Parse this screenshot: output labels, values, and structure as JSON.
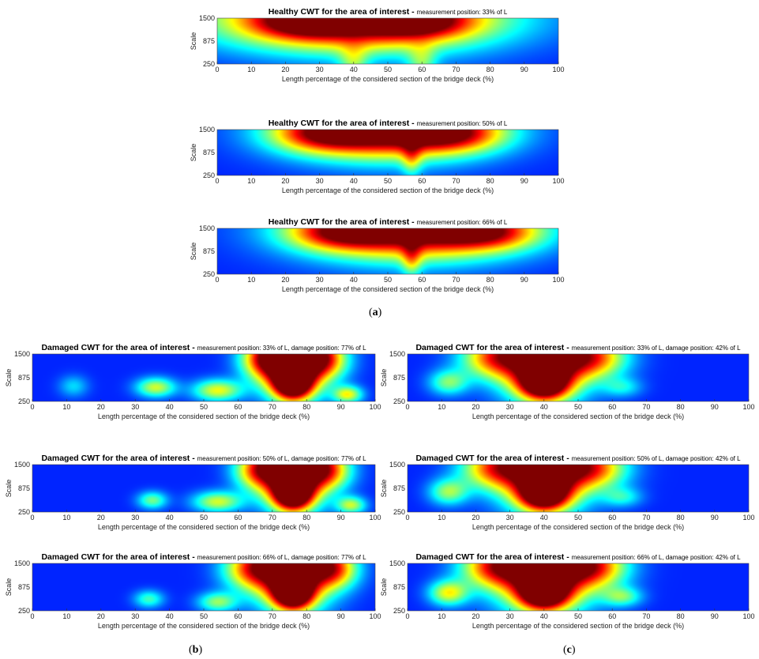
{
  "colors": {
    "colormap": "jet",
    "low": "#1a2fa6",
    "high": "#e3130b"
  },
  "group_labels": {
    "a": {
      "open": "(",
      "letter": "a",
      "close": ")"
    },
    "b": {
      "open": "(",
      "letter": "b",
      "close": ")"
    },
    "c": {
      "open": "(",
      "letter": "c",
      "close": ")"
    }
  },
  "chart_data": [
    {
      "id": "a1",
      "group": "a",
      "type": "heatmap",
      "title_bold": "Healthy CWT for the area of interest - ",
      "title_rest": "measurement position: 33% of L",
      "xlabel": "Length percentage of the considered section of the bridge deck (%)",
      "ylabel": "Scale",
      "xlim": [
        0,
        100
      ],
      "ylim": [
        250,
        1500
      ],
      "xticks": [
        "0",
        "10",
        "20",
        "30",
        "40",
        "50",
        "60",
        "70",
        "80",
        "90",
        "100"
      ],
      "yticks": [
        "250",
        "875",
        "1500"
      ],
      "features": [
        {
          "cx": 41,
          "cy": 1500,
          "w": 28,
          "h": 620,
          "v": 1.0
        },
        {
          "cx": 25,
          "cy": 1400,
          "w": 10,
          "h": 300,
          "v": 0.35
        },
        {
          "cx": 60,
          "cy": 1400,
          "w": 10,
          "h": 300,
          "v": 0.35
        },
        {
          "cx": 40,
          "cy": 250,
          "w": 3,
          "h": 350,
          "v": 0.25
        },
        {
          "cx": 60,
          "cy": 250,
          "w": 3,
          "h": 350,
          "v": 0.25
        }
      ]
    },
    {
      "id": "a2",
      "group": "a",
      "type": "heatmap",
      "title_bold": "Healthy CWT for the area of interest - ",
      "title_rest": "measurement position: 50% of L",
      "xlabel": "Length percentage of the considered section of the bridge deck (%)",
      "ylabel": "Scale",
      "xlim": [
        0,
        100
      ],
      "ylim": [
        250,
        1500
      ],
      "xticks": [
        "0",
        "10",
        "20",
        "30",
        "40",
        "50",
        "60",
        "70",
        "80",
        "90",
        "100"
      ],
      "yticks": [
        "250",
        "875",
        "1500"
      ],
      "features": [
        {
          "cx": 50,
          "cy": 1500,
          "w": 20,
          "h": 550,
          "v": 1.0
        },
        {
          "cx": 30,
          "cy": 1380,
          "w": 10,
          "h": 340,
          "v": 0.4
        },
        {
          "cx": 70,
          "cy": 1380,
          "w": 10,
          "h": 340,
          "v": 0.4
        },
        {
          "cx": 57,
          "cy": 700,
          "w": 2,
          "h": 350,
          "v": 0.25
        }
      ]
    },
    {
      "id": "a3",
      "group": "a",
      "type": "heatmap",
      "title_bold": "Healthy CWT for the area of interest - ",
      "title_rest": "measurement position: 66% of L",
      "xlabel": "Length percentage of the considered section of the bridge deck (%)",
      "ylabel": "Scale",
      "xlim": [
        0,
        100
      ],
      "ylim": [
        250,
        1500
      ],
      "xticks": [
        "0",
        "10",
        "20",
        "30",
        "40",
        "50",
        "60",
        "70",
        "80",
        "90",
        "100"
      ],
      "yticks": [
        "250",
        "875",
        "1500"
      ],
      "features": [
        {
          "cx": 57,
          "cy": 1500,
          "w": 22,
          "h": 580,
          "v": 1.0
        },
        {
          "cx": 35,
          "cy": 1380,
          "w": 10,
          "h": 320,
          "v": 0.4
        },
        {
          "cx": 80,
          "cy": 1380,
          "w": 10,
          "h": 320,
          "v": 0.4
        },
        {
          "cx": 57,
          "cy": 650,
          "w": 2,
          "h": 350,
          "v": 0.28
        }
      ]
    },
    {
      "id": "b1",
      "group": "b",
      "type": "heatmap",
      "title_bold": "Damaged CWT for the area of interest - ",
      "title_rest": "measurement position: 33% of L, damage position: 77% of L",
      "xlabel": "Length percentage of the considered section of the bridge deck (%)",
      "ylabel": "Scale",
      "xlim": [
        0,
        100
      ],
      "ylim": [
        250,
        1500
      ],
      "xticks": [
        "0",
        "10",
        "20",
        "30",
        "40",
        "50",
        "60",
        "70",
        "80",
        "90",
        "100"
      ],
      "yticks": [
        "250",
        "875",
        "1500"
      ],
      "features": [
        {
          "cx": 76,
          "cy": 1500,
          "w": 7,
          "h": 700,
          "v": 1.05
        },
        {
          "cx": 76,
          "cy": 700,
          "w": 4,
          "h": 300,
          "v": 0.85
        },
        {
          "cx": 68,
          "cy": 1350,
          "w": 5,
          "h": 350,
          "v": 0.5
        },
        {
          "cx": 85,
          "cy": 1350,
          "w": 5,
          "h": 350,
          "v": 0.5
        },
        {
          "cx": 36,
          "cy": 620,
          "w": 4,
          "h": 180,
          "v": 0.42
        },
        {
          "cx": 54,
          "cy": 540,
          "w": 5,
          "h": 200,
          "v": 0.45
        },
        {
          "cx": 92,
          "cy": 430,
          "w": 3,
          "h": 160,
          "v": 0.45
        },
        {
          "cx": 12,
          "cy": 650,
          "w": 3,
          "h": 200,
          "v": 0.18
        }
      ]
    },
    {
      "id": "b2",
      "group": "b",
      "type": "heatmap",
      "title_bold": "Damaged CWT for the area of interest - ",
      "title_rest": "measurement position: 50% of L, damage position: 77% of L",
      "xlabel": "Length percentage of the considered section of the bridge deck (%)",
      "ylabel": "Scale",
      "xlim": [
        0,
        100
      ],
      "ylim": [
        250,
        1500
      ],
      "xticks": [
        "0",
        "10",
        "20",
        "30",
        "40",
        "50",
        "60",
        "70",
        "80",
        "90",
        "100"
      ],
      "yticks": [
        "250",
        "875",
        "1500"
      ],
      "features": [
        {
          "cx": 76,
          "cy": 1500,
          "w": 7,
          "h": 700,
          "v": 1.05
        },
        {
          "cx": 76,
          "cy": 700,
          "w": 4,
          "h": 300,
          "v": 0.85
        },
        {
          "cx": 66,
          "cy": 1350,
          "w": 5,
          "h": 350,
          "v": 0.5
        },
        {
          "cx": 86,
          "cy": 1350,
          "w": 5,
          "h": 350,
          "v": 0.5
        },
        {
          "cx": 35,
          "cy": 560,
          "w": 3,
          "h": 160,
          "v": 0.33
        },
        {
          "cx": 54,
          "cy": 520,
          "w": 5,
          "h": 190,
          "v": 0.42
        },
        {
          "cx": 93,
          "cy": 430,
          "w": 3,
          "h": 160,
          "v": 0.4
        }
      ]
    },
    {
      "id": "b3",
      "group": "b",
      "type": "heatmap",
      "title_bold": "Damaged CWT for the area of interest - ",
      "title_rest": "measurement position: 66% of L, damage position: 77% of L",
      "xlabel": "Length percentage of the considered section of the bridge deck (%)",
      "ylabel": "Scale",
      "xlim": [
        0,
        100
      ],
      "ylim": [
        250,
        1500
      ],
      "xticks": [
        "0",
        "10",
        "20",
        "30",
        "40",
        "50",
        "60",
        "70",
        "80",
        "90",
        "100"
      ],
      "yticks": [
        "250",
        "875",
        "1500"
      ],
      "features": [
        {
          "cx": 76,
          "cy": 1500,
          "w": 8,
          "h": 750,
          "v": 1.05
        },
        {
          "cx": 76,
          "cy": 700,
          "w": 4,
          "h": 300,
          "v": 0.85
        },
        {
          "cx": 64,
          "cy": 1350,
          "w": 6,
          "h": 380,
          "v": 0.5
        },
        {
          "cx": 88,
          "cy": 1350,
          "w": 5,
          "h": 350,
          "v": 0.5
        },
        {
          "cx": 34,
          "cy": 560,
          "w": 3,
          "h": 160,
          "v": 0.28
        },
        {
          "cx": 54,
          "cy": 480,
          "w": 4,
          "h": 180,
          "v": 0.35
        }
      ]
    },
    {
      "id": "c1",
      "group": "c",
      "type": "heatmap",
      "title_bold": "Damaged CWT for the area of interest - ",
      "title_rest": "measurement position: 33% of L, damage position: 42% of L",
      "xlabel": "Length percentage of the considered section of the bridge deck (%)",
      "ylabel": "Scale",
      "xlim": [
        0,
        100
      ],
      "ylim": [
        250,
        1500
      ],
      "xticks": [
        "0",
        "10",
        "20",
        "30",
        "40",
        "50",
        "60",
        "70",
        "80",
        "90",
        "100"
      ],
      "yticks": [
        "250",
        "875",
        "1500"
      ],
      "features": [
        {
          "cx": 40,
          "cy": 1500,
          "w": 9,
          "h": 750,
          "v": 1.05
        },
        {
          "cx": 40,
          "cy": 700,
          "w": 5,
          "h": 300,
          "v": 0.75
        },
        {
          "cx": 25,
          "cy": 1400,
          "w": 7,
          "h": 380,
          "v": 0.5
        },
        {
          "cx": 55,
          "cy": 1400,
          "w": 7,
          "h": 380,
          "v": 0.5
        },
        {
          "cx": 12,
          "cy": 750,
          "w": 4,
          "h": 230,
          "v": 0.33
        },
        {
          "cx": 63,
          "cy": 620,
          "w": 4,
          "h": 180,
          "v": 0.2
        }
      ]
    },
    {
      "id": "c2",
      "group": "c",
      "type": "heatmap",
      "title_bold": "Damaged CWT for the area of interest - ",
      "title_rest": "measurement position: 50% of L, damage position: 42% of L",
      "xlabel": "Length percentage of the considered section of the bridge deck (%)",
      "ylabel": "Scale",
      "xlim": [
        0,
        100
      ],
      "ylim": [
        250,
        1500
      ],
      "xticks": [
        "0",
        "10",
        "20",
        "30",
        "40",
        "50",
        "60",
        "70",
        "80",
        "90",
        "100"
      ],
      "yticks": [
        "250",
        "875",
        "1500"
      ],
      "features": [
        {
          "cx": 40,
          "cy": 1500,
          "w": 9,
          "h": 750,
          "v": 1.05
        },
        {
          "cx": 40,
          "cy": 700,
          "w": 5,
          "h": 300,
          "v": 0.75
        },
        {
          "cx": 25,
          "cy": 1400,
          "w": 7,
          "h": 380,
          "v": 0.5
        },
        {
          "cx": 55,
          "cy": 1400,
          "w": 7,
          "h": 380,
          "v": 0.5
        },
        {
          "cx": 12,
          "cy": 780,
          "w": 4,
          "h": 240,
          "v": 0.36
        },
        {
          "cx": 63,
          "cy": 640,
          "w": 4,
          "h": 180,
          "v": 0.22
        }
      ]
    },
    {
      "id": "c3",
      "group": "c",
      "type": "heatmap",
      "title_bold": "Damaged CWT for the area of interest - ",
      "title_rest": "measurement position: 66% of L, damage position: 42% of L",
      "xlabel": "Length percentage of the considered section of the bridge deck (%)",
      "ylabel": "Scale",
      "xlim": [
        0,
        100
      ],
      "ylim": [
        250,
        1500
      ],
      "xticks": [
        "0",
        "10",
        "20",
        "30",
        "40",
        "50",
        "60",
        "70",
        "80",
        "90",
        "100"
      ],
      "yticks": [
        "250",
        "875",
        "1500"
      ],
      "features": [
        {
          "cx": 40,
          "cy": 1500,
          "w": 10,
          "h": 800,
          "v": 1.05
        },
        {
          "cx": 40,
          "cy": 700,
          "w": 5,
          "h": 300,
          "v": 0.75
        },
        {
          "cx": 25,
          "cy": 1400,
          "w": 7,
          "h": 380,
          "v": 0.5
        },
        {
          "cx": 55,
          "cy": 1400,
          "w": 7,
          "h": 380,
          "v": 0.5
        },
        {
          "cx": 12,
          "cy": 720,
          "w": 4,
          "h": 230,
          "v": 0.45
        },
        {
          "cx": 63,
          "cy": 620,
          "w": 4,
          "h": 180,
          "v": 0.3
        }
      ]
    }
  ]
}
